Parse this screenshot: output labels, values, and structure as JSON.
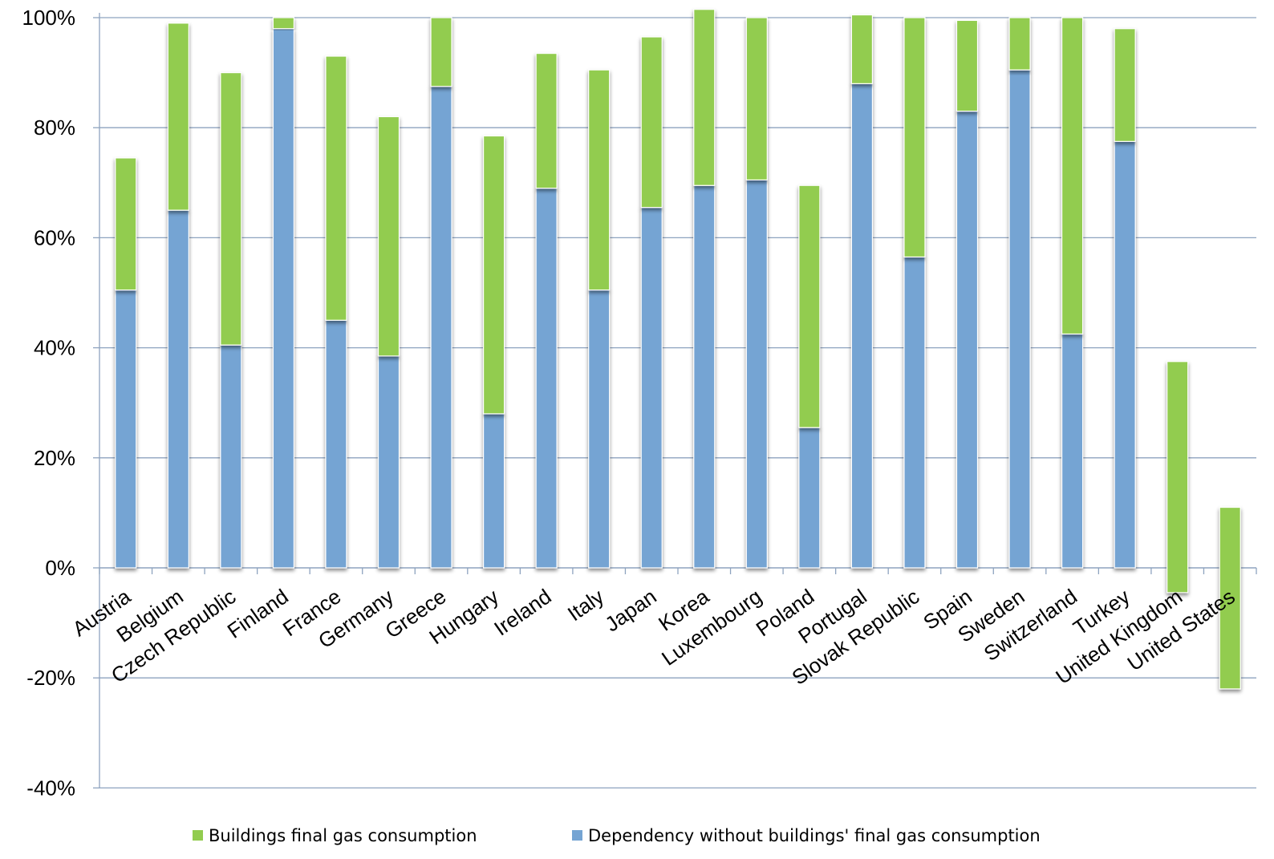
{
  "chart_data": {
    "type": "bar",
    "stacked": true,
    "title": "",
    "xlabel": "",
    "ylabel": "",
    "ylim": [
      -40,
      100
    ],
    "yticks": [
      "100%",
      "80%",
      "60%",
      "40%",
      "20%",
      "0%",
      "-20%",
      "-40%"
    ],
    "ytick_values": [
      100,
      80,
      60,
      40,
      20,
      0,
      -20,
      -40
    ],
    "grid": "horizontal",
    "legend_position": "bottom",
    "categories": [
      "Austria",
      "Belgium",
      "Czech Republic",
      "Finland",
      "France",
      "Germany",
      "Greece",
      "Hungary",
      "Ireland",
      "Italy",
      "Japan",
      "Korea",
      "Luxembourg",
      "Poland",
      "Portugal",
      "Slovak Republic",
      "Spain",
      "Sweden",
      "Switzerland",
      "Turkey",
      "United Kingdom",
      "United States"
    ],
    "series": [
      {
        "name": "Dependency without buildings' final gas consumption",
        "color": "#75a4d3",
        "values": [
          50.5,
          65,
          40.5,
          98,
          45,
          38.5,
          87.5,
          28,
          69,
          50.5,
          65.5,
          69.5,
          70.5,
          25.5,
          88,
          56.5,
          83,
          90.5,
          42.5,
          77.5,
          0,
          0
        ]
      },
      {
        "name": "Buildings final gas consumption",
        "color": "#92cc4f",
        "values": [
          24,
          34,
          49.5,
          2,
          48,
          43.5,
          12.5,
          50.5,
          24.5,
          40,
          31,
          32,
          29.5,
          44,
          12.5,
          43.5,
          16.5,
          9.5,
          57.5,
          20.5,
          42,
          33
        ]
      }
    ],
    "green_base": [
      50.5,
      65,
      40.5,
      98,
      45,
      38.5,
      87.5,
      28,
      69,
      50.5,
      65.5,
      69.5,
      70.5,
      25.5,
      88,
      56.5,
      83,
      90.5,
      42.5,
      77.5,
      -4.5,
      -22
    ]
  },
  "legend": [
    {
      "label": "Buildings final gas consumption",
      "color": "#92cc4f"
    },
    {
      "label": "Dependency without buildings' final gas consumption",
      "color": "#75a4d3"
    }
  ]
}
